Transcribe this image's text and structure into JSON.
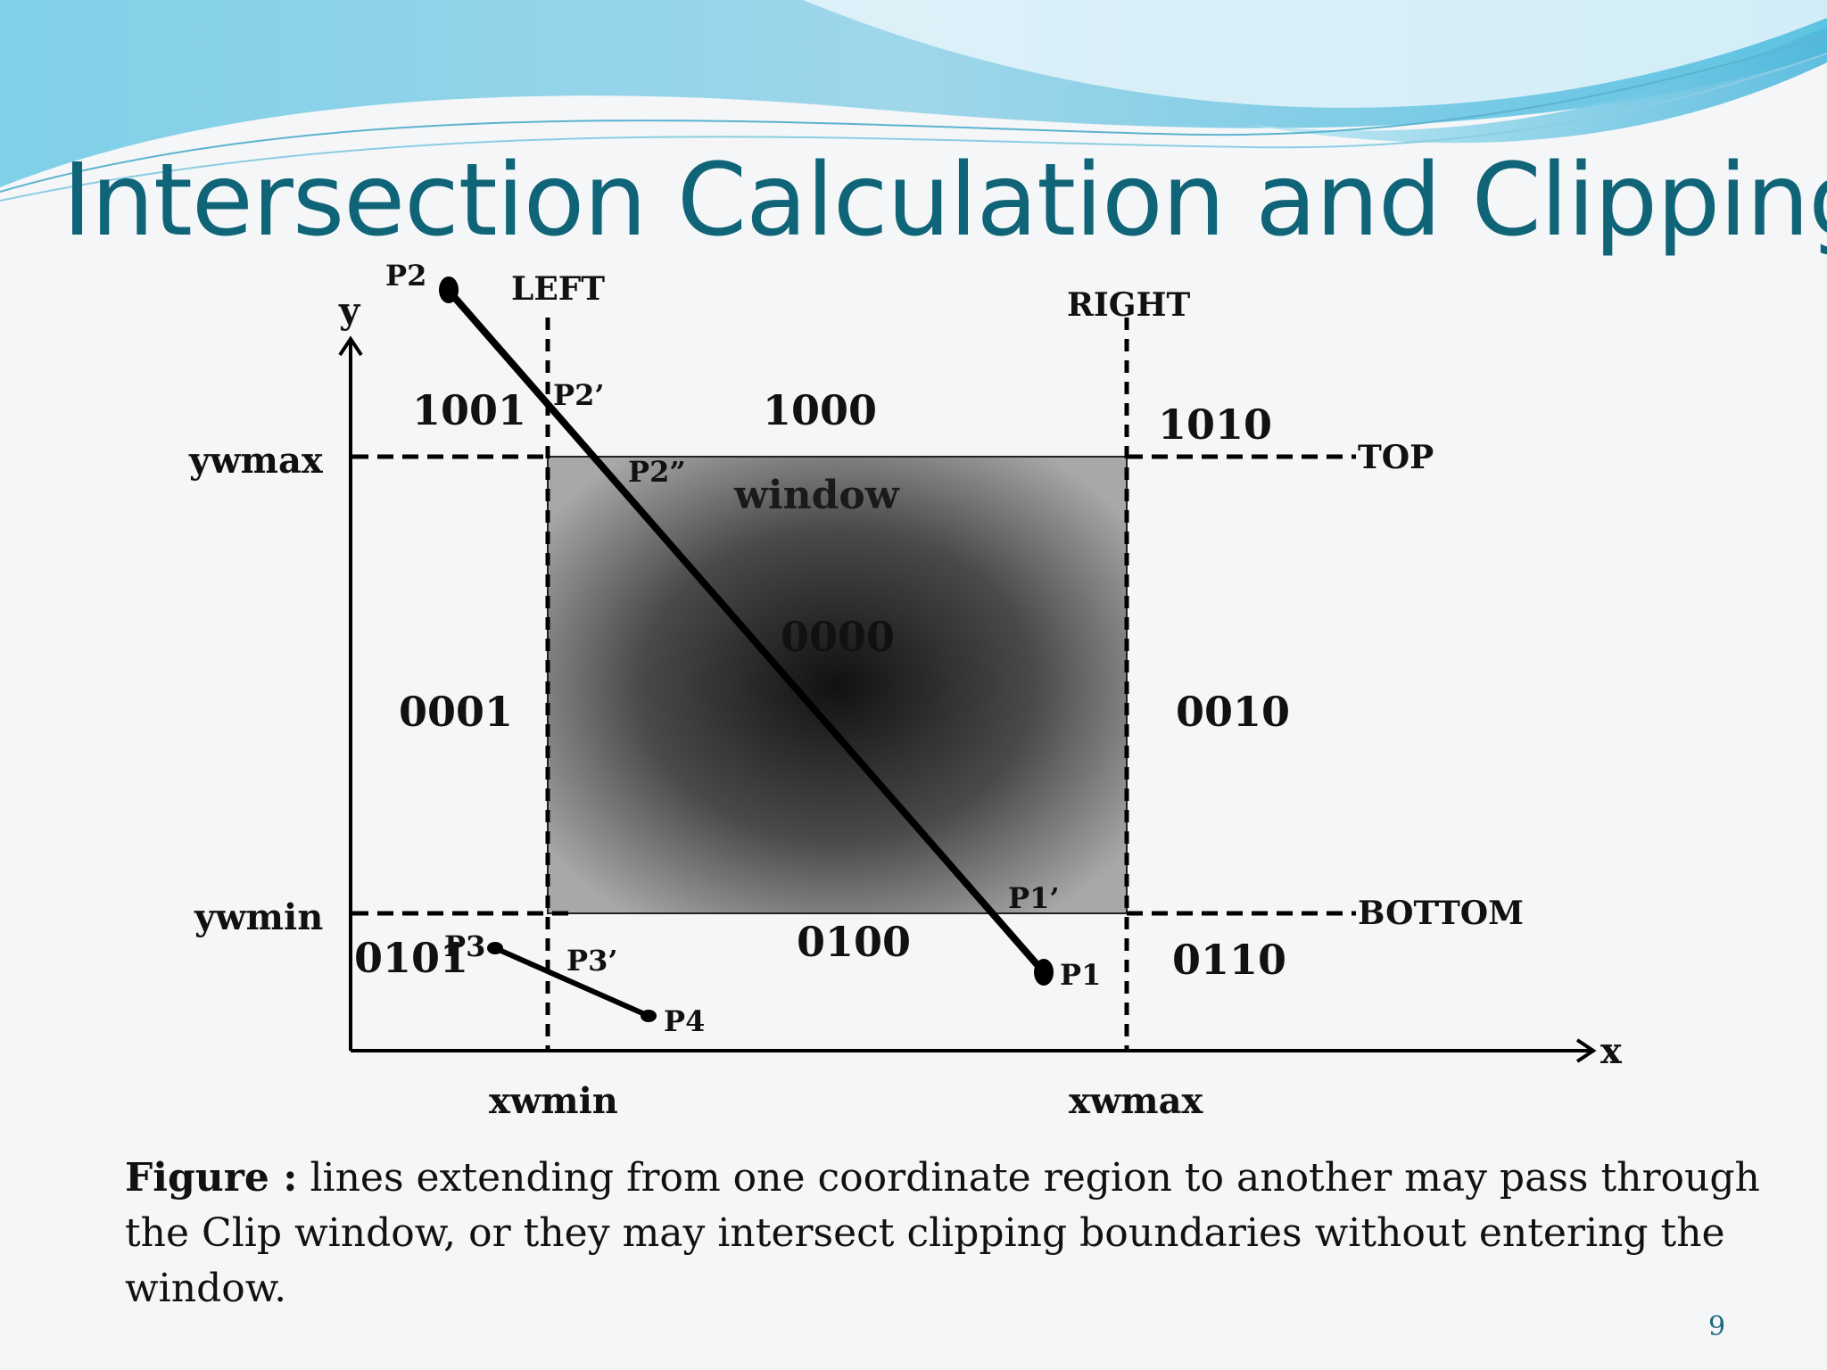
{
  "slide": {
    "title": "Intersection Calculation and Clipping",
    "page_number": "9",
    "caption_lead": "Figure :",
    "caption_text": " lines extending from one coordinate region to another may pass through the Clip window, or they may intersect clipping boundaries without entering the window."
  },
  "diagram": {
    "axes": {
      "x": "x",
      "y": "y"
    },
    "boundaries": {
      "left": "LEFT",
      "right": "RIGHT",
      "top": "TOP",
      "bottom": "BOTTOM",
      "ywmax": "ywmax",
      "ywmin": "ywmin",
      "xwmin": "xwmin",
      "xwmax": "xwmax"
    },
    "window_label": "window",
    "region_codes": {
      "top_left": "1001",
      "top": "1000",
      "top_right": "1010",
      "left": "0001",
      "center": "0000",
      "right": "0010",
      "bottom_left": "0101",
      "bottom": "0100",
      "bottom_right": "0110"
    },
    "points": {
      "p1": "P1",
      "p1_prime": "P1’",
      "p2": "P2",
      "p2_prime": "P2’",
      "p2_double_prime": "P2”",
      "p3": "P3",
      "p3_prime": "P3’",
      "p4": "P4"
    }
  },
  "colors": {
    "title": "#0f6478",
    "window_center": "#111111",
    "window_edge": "#a8a8a8",
    "banner_light": "#bfe8f4",
    "banner_dark": "#4fb8dc"
  }
}
